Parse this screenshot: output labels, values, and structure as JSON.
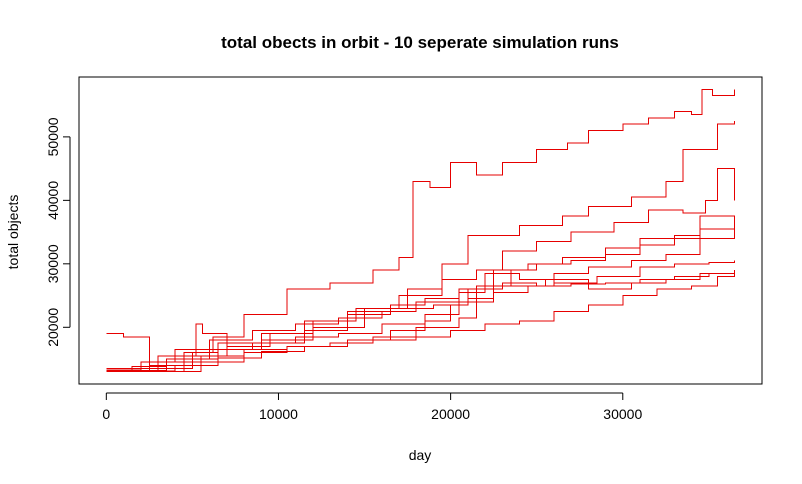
{
  "chart_data": {
    "type": "line",
    "title": "total obects in orbit - 10 seperate simulation runs",
    "xlabel": "day",
    "ylabel": "total objects",
    "xlim": [
      0,
      36500
    ],
    "ylim": [
      13000,
      57500
    ],
    "x_ticks": [
      0,
      10000,
      20000,
      30000
    ],
    "y_ticks": [
      20000,
      30000,
      40000,
      50000
    ],
    "grid": false,
    "legend": "none",
    "line_color": "#e60000",
    "series": [
      {
        "x": [
          0,
          2000,
          3500,
          5000,
          6200,
          8000,
          10500,
          13000,
          15500,
          17000,
          17800,
          18800,
          20000,
          21500,
          23000,
          25000,
          26800,
          28000,
          30000,
          31500,
          33000,
          34000,
          34600,
          35200,
          36500
        ],
        "y": [
          13000,
          13200,
          14000,
          16000,
          18500,
          22000,
          26000,
          27000,
          29000,
          31000,
          43000,
          42000,
          46000,
          44000,
          46000,
          48000,
          49000,
          51000,
          52000,
          53000,
          54000,
          53500,
          57500,
          56500,
          57500
        ]
      },
      {
        "x": [
          0,
          1000,
          2500,
          4500,
          6500,
          9000,
          12000,
          15000,
          17500,
          19500,
          21000,
          24000,
          26500,
          28000,
          30500,
          32500,
          33500,
          35500,
          36500
        ],
        "y": [
          19000,
          18500,
          13000,
          15000,
          16500,
          18000,
          20000,
          23000,
          26000,
          30000,
          34500,
          36000,
          37500,
          39000,
          40500,
          43000,
          48000,
          52000,
          52500
        ]
      },
      {
        "x": [
          0,
          3000,
          5000,
          7000,
          9500,
          12000,
          14500,
          17000,
          19500,
          21500,
          23000,
          25000,
          27000,
          29500,
          31500,
          33500,
          34800,
          35500,
          36500
        ],
        "y": [
          13200,
          13500,
          15500,
          17000,
          19000,
          21000,
          23000,
          25000,
          27500,
          29000,
          32000,
          33500,
          35000,
          36500,
          38500,
          38000,
          40000,
          45000,
          40000
        ]
      },
      {
        "x": [
          0,
          3000,
          5200,
          5600,
          7000,
          9000,
          11500,
          14000,
          16500,
          18500,
          20500,
          22000,
          23500,
          25000,
          27000,
          29000,
          31000,
          33000,
          34500,
          36500
        ],
        "y": [
          13500,
          15500,
          20500,
          19000,
          17000,
          17500,
          19500,
          22000,
          23500,
          24500,
          25500,
          26500,
          29000,
          30000,
          30500,
          31500,
          33000,
          34000,
          37500,
          35500
        ]
      },
      {
        "x": [
          0,
          2500,
          4500,
          6500,
          9000,
          11500,
          14000,
          16500,
          19000,
          21000,
          22500,
          24500,
          26500,
          29000,
          31000,
          33000,
          34500,
          36500
        ],
        "y": [
          13000,
          14000,
          16000,
          17500,
          19000,
          21000,
          22500,
          23000,
          23500,
          24500,
          29000,
          30000,
          31000,
          32500,
          34000,
          34500,
          35500,
          36000
        ]
      },
      {
        "x": [
          0,
          2000,
          4000,
          6000,
          8500,
          11000,
          13500,
          16000,
          18000,
          20500,
          22000,
          24000,
          26000,
          28500,
          31000,
          33000,
          35000,
          36500
        ],
        "y": [
          13300,
          14500,
          16500,
          18000,
          19500,
          20500,
          21500,
          22500,
          24000,
          26000,
          28500,
          27500,
          27000,
          28000,
          29500,
          30000,
          30200,
          30500
        ]
      },
      {
        "x": [
          0,
          1500,
          3500,
          5500,
          8000,
          10500,
          13000,
          15500,
          18000,
          20500,
          21500,
          23000,
          25000,
          27000,
          29000,
          31000,
          33000,
          35000,
          36500
        ],
        "y": [
          13000,
          13200,
          14500,
          15500,
          16500,
          17000,
          17500,
          18500,
          20000,
          21500,
          26500,
          27000,
          26500,
          26800,
          27000,
          27500,
          28000,
          28500,
          29000
        ]
      },
      {
        "x": [
          0,
          2000,
          4000,
          6500,
          9000,
          11500,
          14000,
          16500,
          18500,
          20000,
          21000,
          23000,
          25500,
          28000,
          30500,
          32500,
          34500,
          36500
        ],
        "y": [
          13000,
          13100,
          14000,
          15200,
          16200,
          17000,
          18000,
          19500,
          21000,
          23500,
          26000,
          26500,
          27500,
          26000,
          27000,
          27500,
          28500,
          29000
        ]
      },
      {
        "x": [
          0,
          3000,
          5500,
          8000,
          10500,
          13000,
          15500,
          18000,
          20000,
          22000,
          24000,
          26000,
          28000,
          30000,
          32000,
          34000,
          35500,
          36500
        ],
        "y": [
          13100,
          13000,
          14500,
          16000,
          17000,
          17500,
          18000,
          18500,
          19500,
          20500,
          21000,
          22500,
          23500,
          25000,
          26000,
          26500,
          28000,
          29000
        ]
      },
      {
        "x": [
          0,
          1500,
          3500,
          6000,
          8500,
          11000,
          13500,
          16000,
          18500,
          20500,
          22500,
          24500,
          26000,
          28000,
          30500,
          32500,
          34500,
          36500
        ],
        "y": [
          13200,
          13800,
          15000,
          16500,
          17500,
          18500,
          19000,
          20500,
          22000,
          24000,
          25500,
          26500,
          28500,
          29500,
          30500,
          31500,
          34000,
          35500
        ]
      }
    ]
  }
}
